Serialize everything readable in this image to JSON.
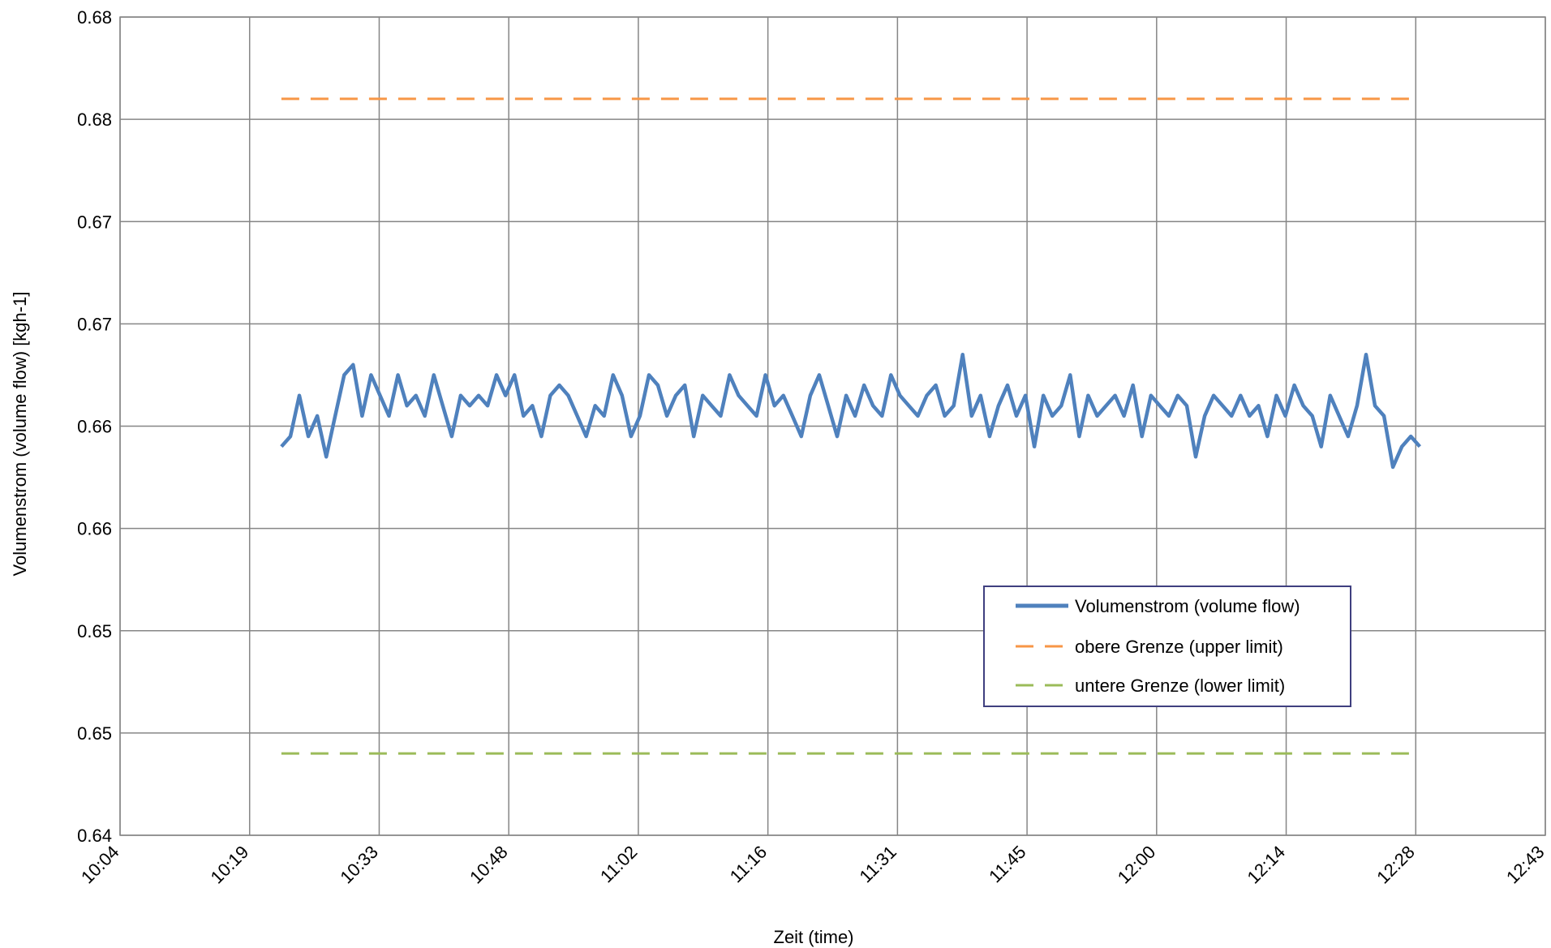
{
  "chart_data": {
    "type": "line",
    "title": "",
    "xlabel": "Zeit (time)",
    "ylabel": "Volumenstrom (volume flow) [kgh-1]",
    "ylim": [
      0.64,
      0.68
    ],
    "y_ticks": [
      0.64,
      0.645,
      0.65,
      0.655,
      0.66,
      0.665,
      0.67,
      0.675,
      0.68
    ],
    "y_tick_labels": [
      "0.64",
      "0.65",
      "0.65",
      "0.66",
      "0.66",
      "0.67",
      "0.67",
      "0.68",
      "0.68"
    ],
    "x_tick_labels": [
      "10:04",
      "10:19",
      "10:33",
      "10:48",
      "11:02",
      "11:16",
      "11:31",
      "11:45",
      "12:00",
      "12:14",
      "12:28",
      "12:43"
    ],
    "grid": true,
    "legend_position": "bottom-right",
    "colors": {
      "flow": "#4f81bd",
      "upper": "#f79646",
      "lower": "#9bbb59",
      "grid": "#868686",
      "legend_border": "#3f3f7f"
    },
    "series": [
      {
        "name": "Volumenstrom (volume flow)",
        "style": "solid",
        "x": [
          "10:22",
          "10:23",
          "10:24",
          "10:25",
          "10:26",
          "10:27",
          "10:28",
          "10:29",
          "10:30",
          "10:31",
          "10:32",
          "10:33",
          "10:34",
          "10:35",
          "10:36",
          "10:37",
          "10:38",
          "10:39",
          "10:40",
          "10:41",
          "10:42",
          "10:43",
          "10:44",
          "10:45",
          "10:46",
          "10:47",
          "10:48",
          "10:49",
          "10:50",
          "10:51",
          "10:52",
          "10:53",
          "10:54",
          "10:55",
          "10:56",
          "10:57",
          "10:58",
          "10:59",
          "11:00",
          "11:01",
          "11:02",
          "11:03",
          "11:04",
          "11:05",
          "11:06",
          "11:07",
          "11:08",
          "11:09",
          "11:10",
          "11:11",
          "11:12",
          "11:13",
          "11:14",
          "11:15",
          "11:16",
          "11:17",
          "11:18",
          "11:19",
          "11:20",
          "11:21",
          "11:22",
          "11:23",
          "11:24",
          "11:25",
          "11:26",
          "11:27",
          "11:28",
          "11:29",
          "11:30",
          "11:31",
          "11:32",
          "11:33",
          "11:34",
          "11:35",
          "11:36",
          "11:37",
          "11:38",
          "11:39",
          "11:40",
          "11:41",
          "11:42",
          "11:43",
          "11:44",
          "11:45",
          "11:46",
          "11:47",
          "11:48",
          "11:49",
          "11:50",
          "11:51",
          "11:52",
          "11:53",
          "11:54",
          "11:55",
          "11:56",
          "11:57",
          "11:58",
          "11:59",
          "12:00",
          "12:01",
          "12:02",
          "12:03",
          "12:04",
          "12:05",
          "12:06",
          "12:07",
          "12:08",
          "12:09",
          "12:10",
          "12:11",
          "12:12",
          "12:13",
          "12:14",
          "12:15",
          "12:16",
          "12:17",
          "12:18",
          "12:19",
          "12:20",
          "12:21",
          "12:22",
          "12:23",
          "12:24",
          "12:25",
          "12:26",
          "12:27",
          "12:28",
          "12:29"
        ],
        "values": [
          0.659,
          0.6595,
          0.6615,
          0.6595,
          0.6605,
          0.6585,
          0.6605,
          0.6625,
          0.663,
          0.6605,
          0.6625,
          0.6615,
          0.6605,
          0.6625,
          0.661,
          0.6615,
          0.6605,
          0.6625,
          0.661,
          0.6595,
          0.6615,
          0.661,
          0.6615,
          0.661,
          0.6625,
          0.6615,
          0.6625,
          0.6605,
          0.661,
          0.6595,
          0.6615,
          0.662,
          0.6615,
          0.6605,
          0.6595,
          0.661,
          0.6605,
          0.6625,
          0.6615,
          0.6595,
          0.6605,
          0.6625,
          0.662,
          0.6605,
          0.6615,
          0.662,
          0.6595,
          0.6615,
          0.661,
          0.6605,
          0.6625,
          0.6615,
          0.661,
          0.6605,
          0.6625,
          0.661,
          0.6615,
          0.6605,
          0.6595,
          0.6615,
          0.6625,
          0.661,
          0.6595,
          0.6615,
          0.6605,
          0.662,
          0.661,
          0.6605,
          0.6625,
          0.6615,
          0.661,
          0.6605,
          0.6615,
          0.662,
          0.6605,
          0.661,
          0.6635,
          0.6605,
          0.6615,
          0.6595,
          0.661,
          0.662,
          0.6605,
          0.6615,
          0.659,
          0.6615,
          0.6605,
          0.661,
          0.6625,
          0.6595,
          0.6615,
          0.6605,
          0.661,
          0.6615,
          0.6605,
          0.662,
          0.6595,
          0.6615,
          0.661,
          0.6605,
          0.6615,
          0.661,
          0.6585,
          0.6605,
          0.6615,
          0.661,
          0.6605,
          0.6615,
          0.6605,
          0.661,
          0.6595,
          0.6615,
          0.6605,
          0.662,
          0.661,
          0.6605,
          0.659,
          0.6615,
          0.6605,
          0.6595,
          0.661,
          0.6635,
          0.661,
          0.6605,
          0.658,
          0.659,
          0.6595,
          0.659
        ]
      },
      {
        "name": "obere Grenze (upper limit)",
        "style": "dashed",
        "x": [
          "10:22",
          "12:29"
        ],
        "values": [
          0.676,
          0.676
        ]
      },
      {
        "name": "untere Grenze (lower limit)",
        "style": "dashed",
        "x": [
          "10:22",
          "12:29"
        ],
        "values": [
          0.644,
          0.644
        ]
      }
    ]
  }
}
